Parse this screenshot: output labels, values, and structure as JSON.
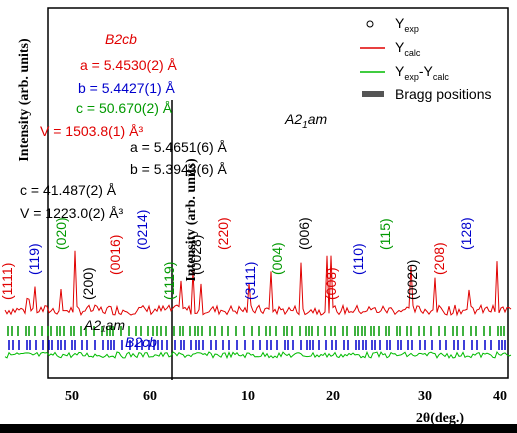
{
  "left_panel": {
    "phase": "B2cb",
    "a": "a = 5.4530(2) Å",
    "b": "b = 5.4427(1) Å",
    "c": "c = 50.670(2) Å",
    "V": "V = 1503.8(1) Å³",
    "x_ticks": [
      "50",
      "60"
    ],
    "y_label": "Intensity (arb. units)"
  },
  "right_panel": {
    "phase": {
      "main": "A2",
      "sub": "1",
      "rest": "am"
    },
    "a": "a = 5.4651(6) Å",
    "b": "b = 5.3943(6) Å",
    "c": "c = 41.487(2) Å",
    "V": "V = 1223.0(2) Å³",
    "x_ticks": [
      "10",
      "20",
      "30",
      "40"
    ],
    "x_label": "2θ(deg.)",
    "y_label": "Intensity (arb. units)"
  },
  "legend": [
    {
      "main": "Y",
      "sub": "exp"
    },
    {
      "main": "Y",
      "sub": "calc"
    },
    {
      "main": "Y",
      "sub": "exp",
      "rest": "-Y",
      "sub2": "calc"
    },
    {
      "main": "Bragg positions"
    }
  ],
  "bragg_labels": {
    "top": "A2₁am",
    "bottom": "B2cb"
  },
  "peak_labels": [
    "(1111)",
    "(119)",
    "(020)",
    "(200)",
    "(0016)",
    "(0214)",
    "(1119)",
    "(0028)",
    "(220)",
    "(3111)",
    "(004)",
    "(006)",
    "(008)",
    "(110)",
    "(115)",
    "(0020)",
    "(208)",
    "(128)"
  ]
}
